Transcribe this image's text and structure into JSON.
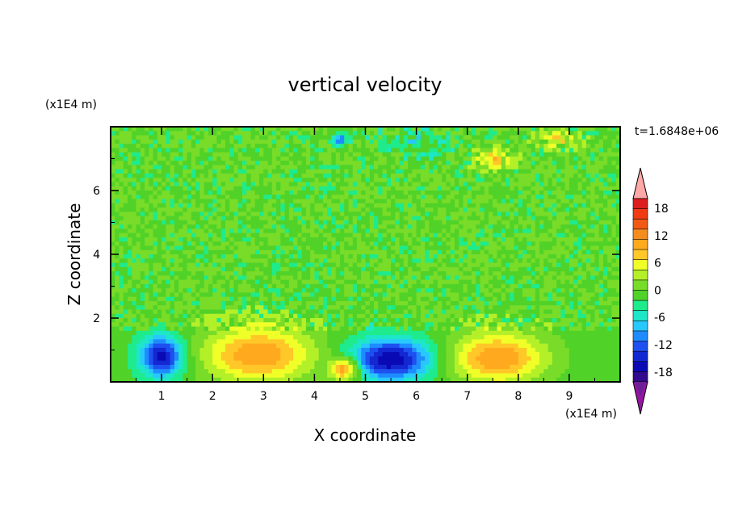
{
  "chart_data": {
    "type": "heatmap",
    "title": "vertical velocity",
    "xlabel": "X coordinate",
    "ylabel": "Z coordinate",
    "x_unit_label": "(x1E4 m)",
    "y_unit_label": "(x1E4 m)",
    "time_label": "t=1.6848e+06",
    "xlim": [
      0,
      10
    ],
    "ylim": [
      0,
      8
    ],
    "x_ticks": [
      "1",
      "2",
      "3",
      "4",
      "5",
      "6",
      "7",
      "8",
      "9"
    ],
    "y_ticks": [
      "2",
      "4",
      "6"
    ],
    "colorbar": {
      "range": [
        -21,
        21
      ],
      "labels": [
        "18",
        "12",
        "6",
        "0",
        "-6",
        "-12",
        "-18"
      ],
      "colors": [
        "#ffa8a8",
        "#dc1e1e",
        "#f03c14",
        "#f05a14",
        "#f58c1e",
        "#ffaa1e",
        "#ffc828",
        "#f0ff28",
        "#b4f028",
        "#78dc28",
        "#50d228",
        "#1eeb8c",
        "#1ee6c8",
        "#28c8ff",
        "#1e8cff",
        "#1e50f0",
        "#1428d2",
        "#0a0ab4",
        "#320a8c",
        "#6e1e96",
        "#9614a0"
      ]
    },
    "features": [
      {
        "x": 1.0,
        "z": 0.8,
        "value": -14,
        "sx": 0.3,
        "sz": 0.45
      },
      {
        "x": 2.9,
        "z": 0.85,
        "value": 11,
        "sx": 0.75,
        "sz": 0.6
      },
      {
        "x": 4.6,
        "z": 0.4,
        "value": 12,
        "sx": 0.2,
        "sz": 0.25
      },
      {
        "x": 5.5,
        "z": 0.7,
        "value": -15,
        "sx": 0.55,
        "sz": 0.45
      },
      {
        "x": 7.6,
        "z": 0.75,
        "value": 11,
        "sx": 0.65,
        "sz": 0.55
      },
      {
        "x": 7.5,
        "z": 7.0,
        "value": 7,
        "sx": 0.25,
        "sz": 0.2
      },
      {
        "x": 4.5,
        "z": 7.6,
        "value": -9,
        "sx": 0.12,
        "sz": 0.15
      },
      {
        "x": 8.8,
        "z": 7.6,
        "value": 5,
        "sx": 0.3,
        "sz": 0.2
      },
      {
        "x": 6.0,
        "z": 7.5,
        "value": -3,
        "sx": 0.6,
        "sz": 0.3
      }
    ]
  }
}
